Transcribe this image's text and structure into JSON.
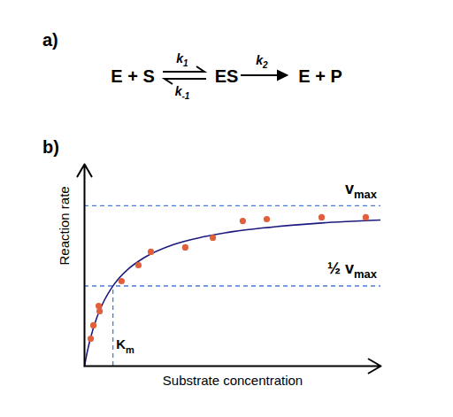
{
  "reaction": {
    "panel_label": "a)",
    "reactants": "E + S",
    "complex": "ES",
    "products": "E + P",
    "forward_rate": {
      "text": "k",
      "subscript": "1"
    },
    "reverse_rate": {
      "text": "k",
      "subscript": "-1"
    },
    "catalytic_rate": {
      "text": "k",
      "subscript": "2"
    }
  },
  "chart_data": {
    "type": "scatter",
    "panel_label": "b)",
    "x_label": "Substrate concentration",
    "y_label": "Reaction rate",
    "xlim": [
      0,
      100
    ],
    "ylim": [
      0,
      100
    ],
    "xticks": [],
    "yticks": [],
    "tick_labels": false,
    "grid": false,
    "series": [
      {
        "type": "line",
        "color": "#1c1a7e",
        "line_style": "solid",
        "x": [
          0,
          1,
          2,
          4,
          6,
          10,
          15,
          20,
          30,
          40,
          50,
          60,
          70,
          80,
          90,
          100
        ],
        "values": [
          0,
          7.5,
          13.7,
          23.4,
          30.5,
          40.5,
          48.4,
          53.6,
          60.2,
          64.0,
          66.6,
          68.4,
          69.8,
          70.9,
          71.7,
          72.4
        ]
      },
      {
        "type": "scatter",
        "color": "#e0603c",
        "marker": "circle",
        "x": [
          2.1,
          3.0,
          4.8,
          5.1,
          12.5,
          18.2,
          22.4,
          34.0,
          43.3,
          53.4,
          61.5,
          80.0,
          94.9
        ],
        "values": [
          13.6,
          20.2,
          29.8,
          27.2,
          42.1,
          50.0,
          56.6,
          58.8,
          63.6,
          71.9,
          72.8,
          73.7,
          73.7
        ]
      }
    ],
    "reference_lines": [
      {
        "axis": "y",
        "value": 79.4,
        "label": {
          "text": "v",
          "subscript": "max"
        }
      },
      {
        "axis": "y",
        "value": 39.7,
        "label": {
          "text": "½ v",
          "subscript": "max"
        }
      },
      {
        "axis": "x",
        "value": 9.6,
        "y_end": 39.7,
        "label": {
          "text": "K",
          "subscript": "m"
        }
      }
    ],
    "reference_color": "#4a7bd6",
    "reference_line_style": "dashed"
  }
}
